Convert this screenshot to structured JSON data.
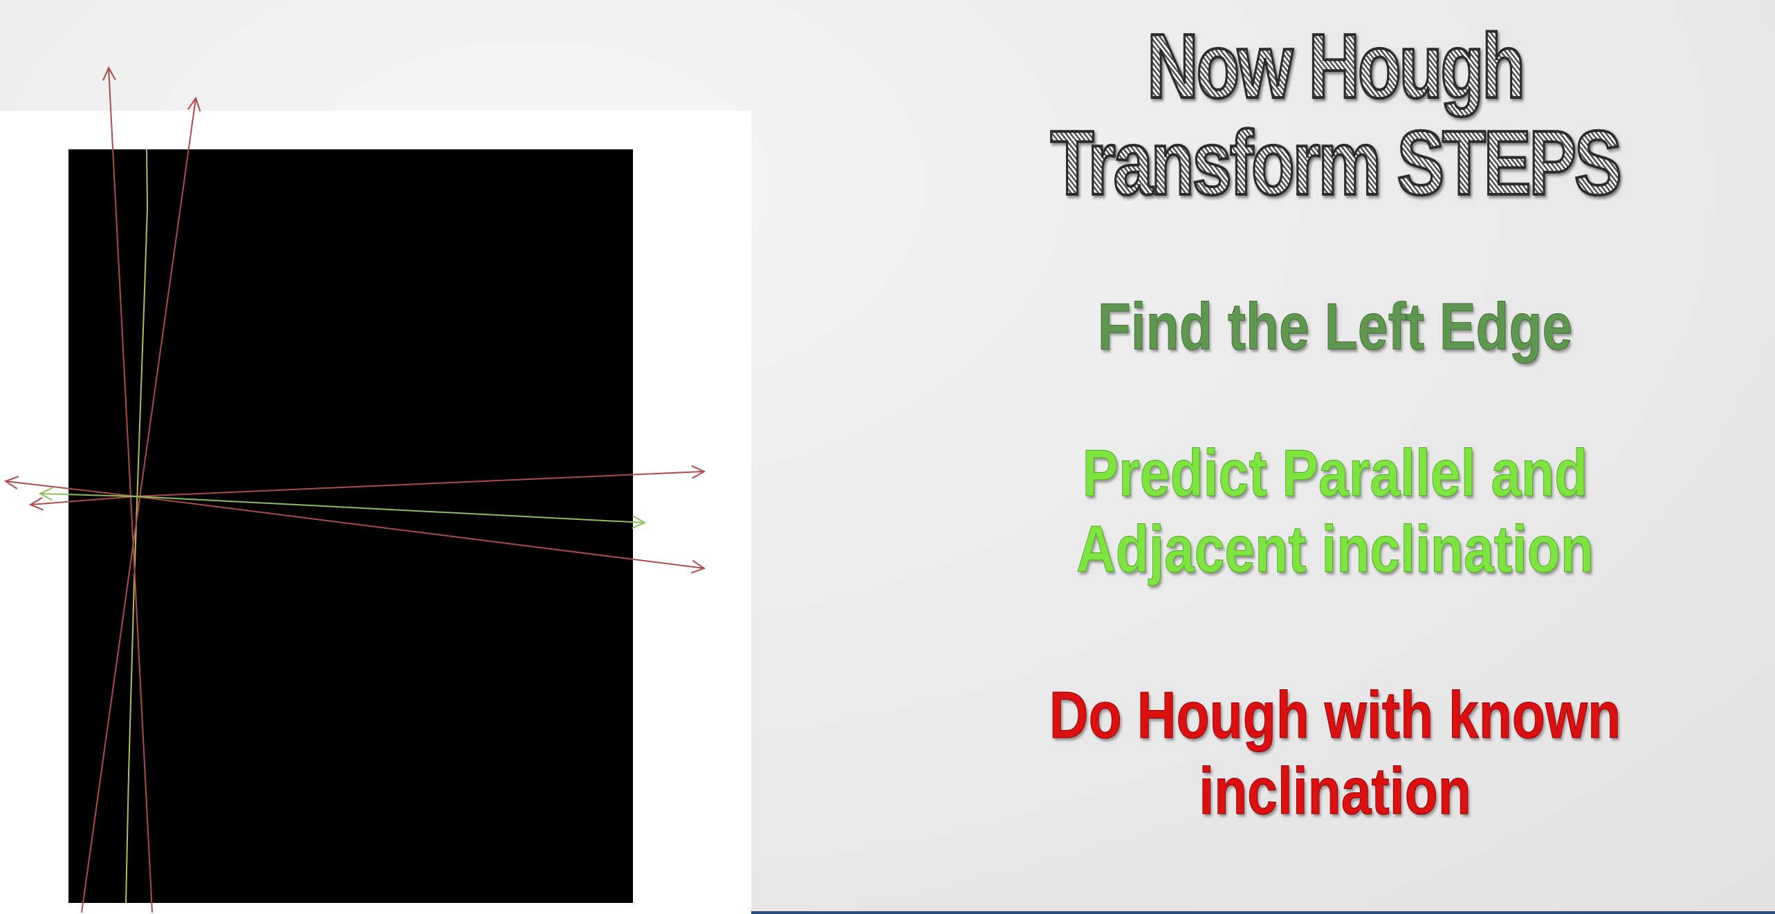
{
  "slide": {
    "title": "Now Hough Transform STEPS",
    "steps": [
      "Find the Left Edge",
      "Predict Parallel and Adjacent inclination",
      "Do Hough with known inclination"
    ],
    "colors": {
      "step_1": "#5f9650",
      "step_2": "#7ee43f",
      "step_3": "#dc1010",
      "arrow_red": "#b04a4a",
      "arrow_green": "#8cc05a",
      "edge_line": "#d6e15a"
    }
  }
}
